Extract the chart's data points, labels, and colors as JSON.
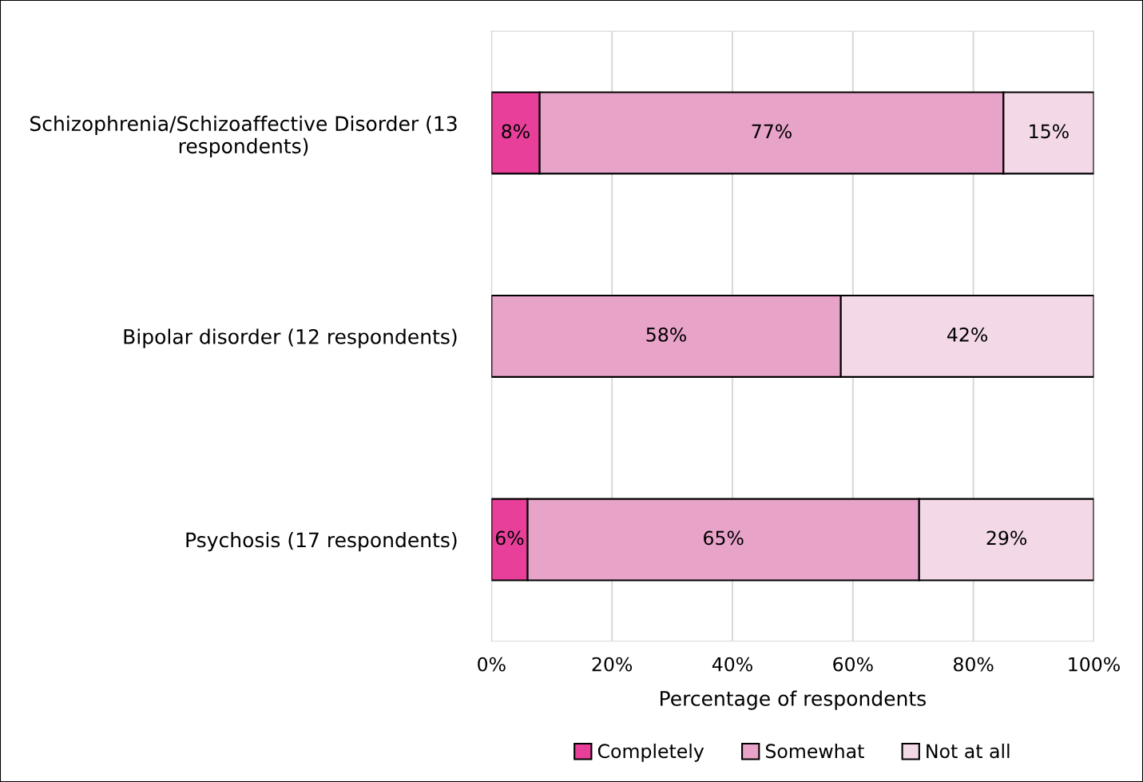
{
  "chart_data": {
    "type": "bar",
    "orientation": "horizontal",
    "stacked": true,
    "categories": [
      "Schizophrenia/Schizoaffective Disorder (13 respondents)",
      "Bipolar disorder (12 respondents)",
      "Psychosis (17 respondents)"
    ],
    "series": [
      {
        "name": "Completely",
        "color": "#e8409a",
        "values": [
          8,
          0,
          6
        ],
        "value_labels": [
          "8%",
          null,
          "6%"
        ]
      },
      {
        "name": "Somewhat",
        "color": "#e8a3c9",
        "values": [
          77,
          58,
          65
        ],
        "value_labels": [
          "77%",
          "58%",
          "65%"
        ]
      },
      {
        "name": "Not at all",
        "color": "#f3d9e7",
        "values": [
          15,
          42,
          29
        ],
        "value_labels": [
          "15%",
          "42%",
          "29%"
        ]
      }
    ],
    "xlabel": "Percentage of respondents",
    "xlim": [
      0,
      100
    ],
    "xticks": [
      {
        "value": 0,
        "label": "0%"
      },
      {
        "value": 20,
        "label": "20%"
      },
      {
        "value": 40,
        "label": "40%"
      },
      {
        "value": 60,
        "label": "60%"
      },
      {
        "value": 80,
        "label": "80%"
      },
      {
        "value": 100,
        "label": "100%"
      }
    ],
    "grid": "x",
    "legend": "bottom"
  }
}
